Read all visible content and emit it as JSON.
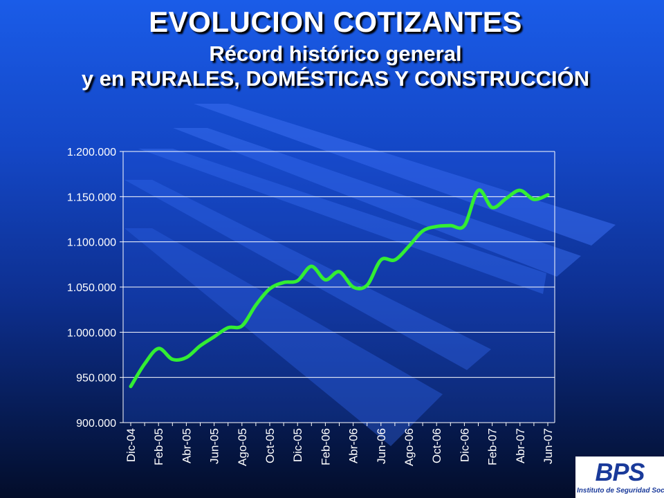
{
  "slide": {
    "title": "EVOLUCION COTIZANTES",
    "subtitle_line1": "Récord histórico general",
    "subtitle_line2": "y en RURALES, DOMÉSTICAS Y CONSTRUCCIÓN"
  },
  "logo": {
    "mark": "BPS",
    "subtitle": "Instituto de Seguridad Social"
  },
  "colors": {
    "line": "#33ee33",
    "plot_background": "#1f55e0",
    "gridline": "#ffffff",
    "text": "#ffffff"
  },
  "chart_data": {
    "type": "line",
    "title": "",
    "xlabel": "",
    "ylabel": "",
    "ylim": [
      900000,
      1200000
    ],
    "y_ticks": [
      900000,
      950000,
      1000000,
      1050000,
      1100000,
      1150000,
      1200000
    ],
    "y_tick_labels": [
      "900.000",
      "950.000",
      "1.000.000",
      "1.050.000",
      "1.100.000",
      "1.150.000",
      "1.200.000"
    ],
    "x_tick_labels": [
      "Dic-04",
      "Feb-05",
      "Abr-05",
      "Jun-05",
      "Ago-05",
      "Oct-05",
      "Dic-05",
      "Feb-06",
      "Abr-06",
      "Jun-06",
      "Ago-06",
      "Oct-06",
      "Dic-06",
      "Feb-07",
      "Abr-07",
      "Jun-07"
    ],
    "grid": true,
    "legend": "none",
    "series": [
      {
        "x": [
          "Dic-04",
          "Ene-05",
          "Feb-05",
          "Mar-05",
          "Abr-05",
          "May-05",
          "Jun-05",
          "Jul-05",
          "Ago-05",
          "Sep-05",
          "Oct-05",
          "Nov-05",
          "Dic-05",
          "Ene-06",
          "Feb-06",
          "Mar-06",
          "Abr-06",
          "May-06",
          "Jun-06",
          "Jul-06",
          "Ago-06",
          "Sep-06",
          "Oct-06",
          "Nov-06",
          "Dic-06",
          "Ene-07",
          "Feb-07",
          "Mar-07",
          "Abr-07",
          "May-07",
          "Jun-07"
        ],
        "values": [
          940000,
          965000,
          982000,
          970000,
          972000,
          985000,
          995000,
          1005000,
          1007000,
          1030000,
          1048000,
          1055000,
          1057000,
          1073000,
          1058000,
          1067000,
          1050000,
          1052000,
          1080000,
          1080000,
          1095000,
          1112000,
          1117000,
          1118000,
          1118000,
          1157000,
          1138000,
          1148000,
          1157000,
          1147000,
          1152000
        ]
      }
    ]
  }
}
